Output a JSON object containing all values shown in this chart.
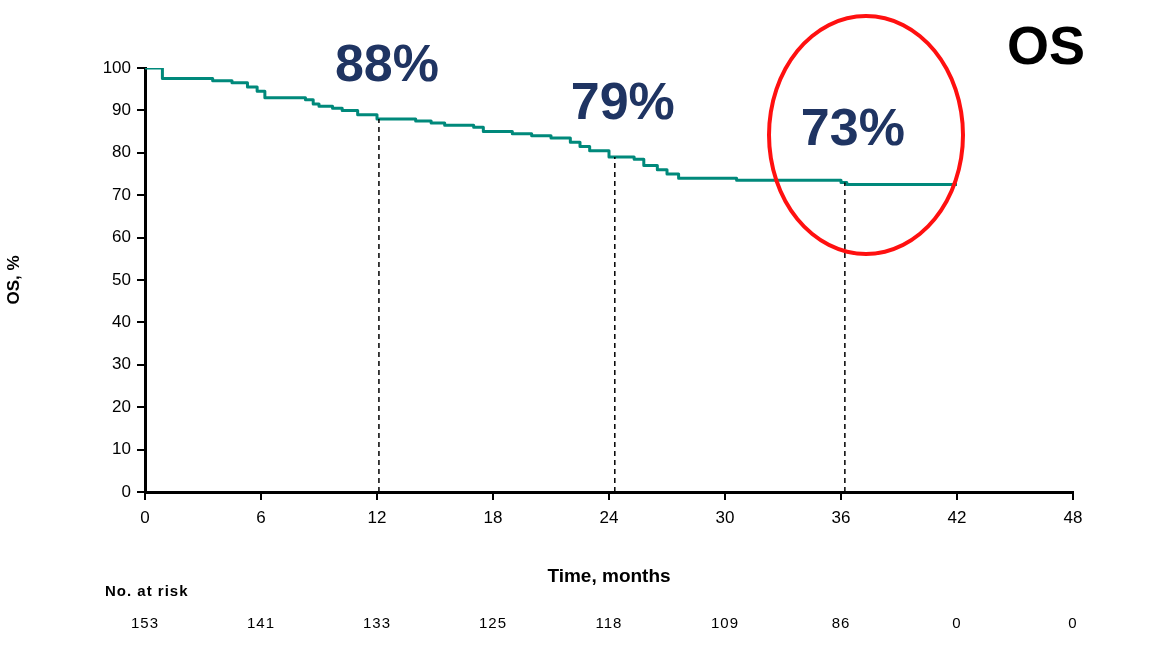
{
  "chart_data": {
    "type": "step",
    "title": "OS",
    "xlabel": "Time, months",
    "ylabel": "OS, %",
    "xlim": [
      0,
      48
    ],
    "xticks": [
      0,
      6,
      12,
      18,
      24,
      30,
      36,
      42,
      48
    ],
    "ylim": [
      0,
      100
    ],
    "yticks": [
      0,
      10,
      20,
      30,
      40,
      50,
      60,
      70,
      80,
      90,
      100
    ],
    "grid": false,
    "legend": false,
    "marker": "none",
    "line_style": "solid",
    "series": [
      {
        "color": "#00897b",
        "x": [
          0,
          0.9,
          3.5,
          4.5,
          5.3,
          5.8,
          6.2,
          8.3,
          8.7,
          9,
          9.7,
          10.2,
          11,
          12,
          14,
          14.8,
          15.5,
          17,
          17.5,
          19,
          20,
          21,
          22,
          22.5,
          23,
          24,
          25.3,
          25.8,
          26.5,
          27,
          27.6,
          30,
          30.6,
          34.5,
          36,
          36.3,
          42
        ],
        "values": [
          100,
          97.5,
          97,
          96.5,
          95.5,
          94.5,
          93,
          92.5,
          91.5,
          91,
          90.5,
          90,
          89,
          88,
          87.5,
          87,
          86.5,
          86,
          85,
          84.5,
          84,
          83.5,
          82.5,
          81.5,
          80.5,
          79,
          78.5,
          77,
          76,
          75,
          74,
          74,
          73.5,
          73.5,
          73,
          72.5,
          72.5
        ]
      }
    ],
    "ref_lines": [
      {
        "axis": "x",
        "value": 12.1,
        "line_style": "dashed",
        "color": "#000000"
      },
      {
        "axis": "x",
        "value": 24.3,
        "line_style": "dashed",
        "color": "#000000"
      },
      {
        "axis": "x",
        "value": 36.2,
        "line_style": "dashed",
        "color": "#000000"
      }
    ],
    "annotations": [
      {
        "text": "88%",
        "x": 12.1,
        "y": 88
      },
      {
        "text": "79%",
        "x": 24.3,
        "y": 79
      },
      {
        "text": "73%",
        "x": 36.2,
        "y": 73
      },
      "No. at risk",
      "153",
      "141",
      "133",
      "125",
      "118",
      "109",
      "86",
      "0",
      "0"
    ]
  }
}
